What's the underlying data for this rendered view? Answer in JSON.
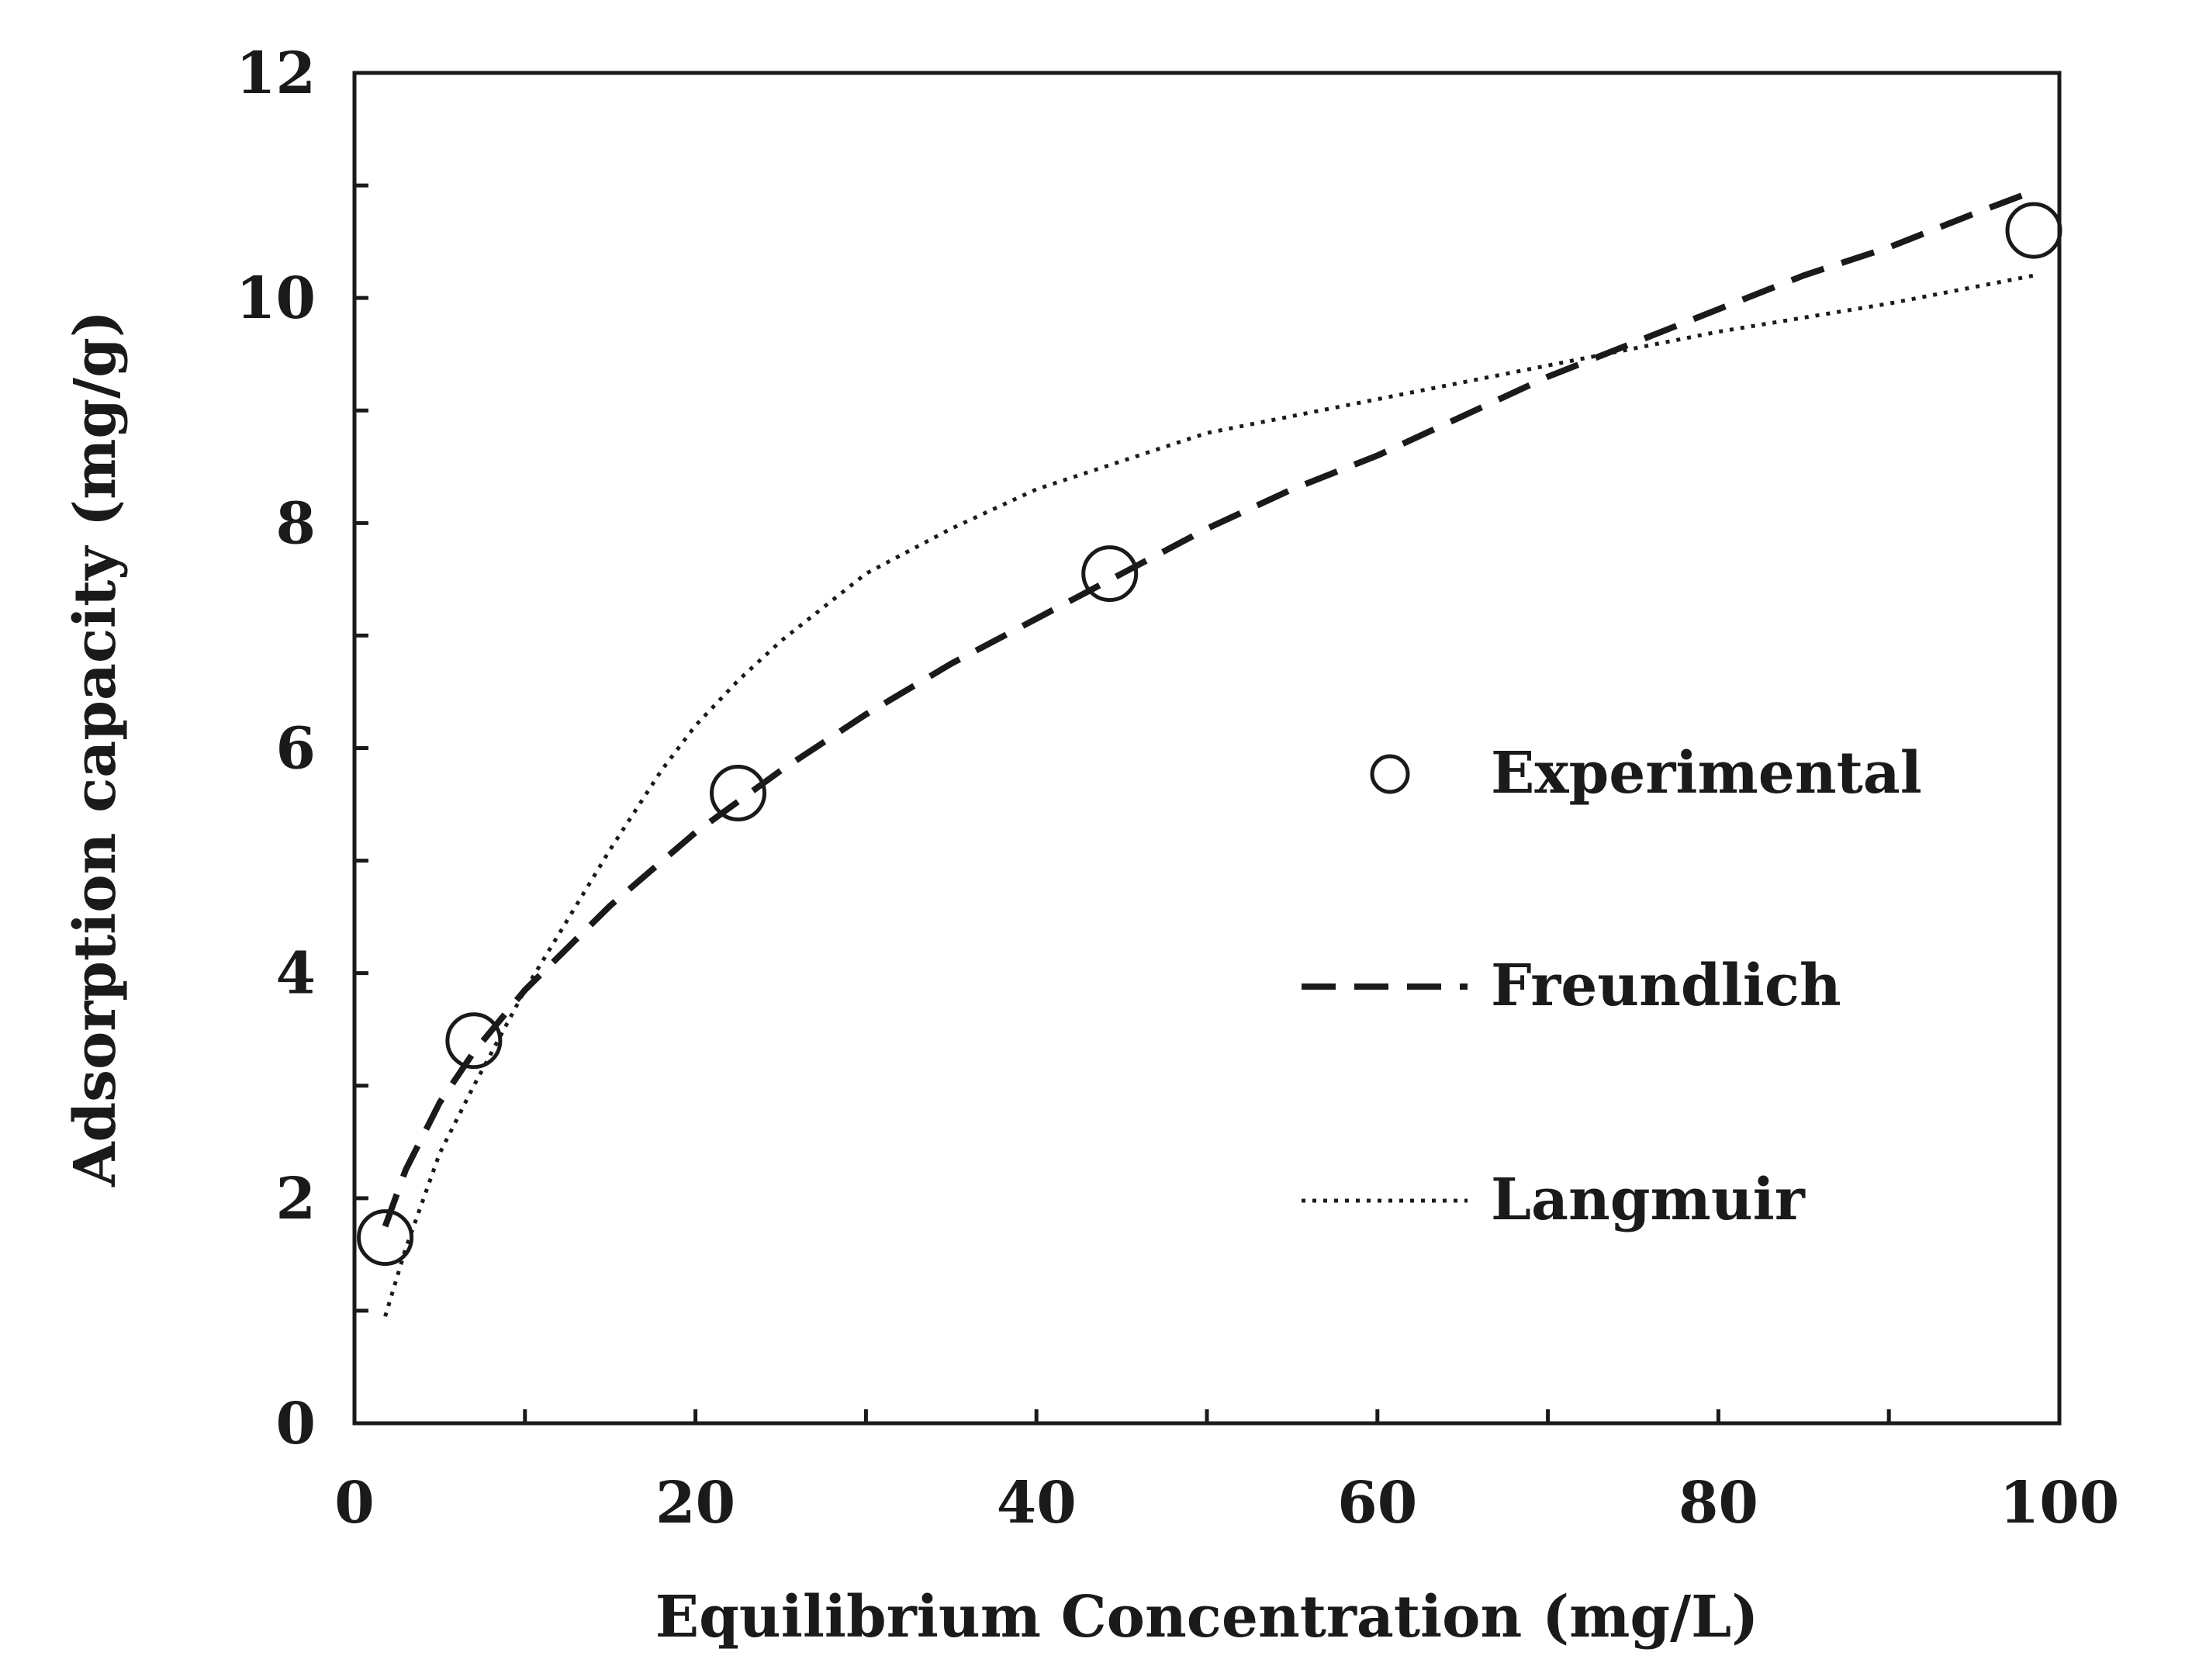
{
  "chart_data": {
    "type": "scatter",
    "title": "",
    "xlabel": "Equilibrium Concentration (mg/L)",
    "ylabel": "Adsorption capacity (mg/g)",
    "xlim": [
      0,
      100
    ],
    "ylim": [
      0,
      12
    ],
    "x_ticks": [
      0,
      20,
      40,
      60,
      80,
      100
    ],
    "x_tick_labels": [
      "0",
      "20",
      "40",
      "60",
      "80",
      "100"
    ],
    "x_minor_ticks": [
      10,
      30,
      50,
      70,
      90
    ],
    "y_ticks": [
      0,
      2,
      4,
      6,
      8,
      10,
      12
    ],
    "y_tick_labels": [
      "0",
      "2",
      "4",
      "6",
      "8",
      "10",
      "12"
    ],
    "y_minor_ticks": [
      1,
      3,
      5,
      7,
      9,
      11
    ],
    "grid": false,
    "legend_position": "center-right",
    "series": [
      {
        "name": "Experimental",
        "style": "open-circle",
        "x": [
          1.8,
          7.0,
          22.5,
          44.3,
          98.5
        ],
        "y": [
          1.65,
          3.4,
          5.6,
          7.55,
          10.6
        ]
      },
      {
        "name": "Freundlich",
        "style": "dashed",
        "x": [
          1.8,
          3,
          5,
          7,
          10,
          15,
          20,
          25,
          30,
          35,
          40,
          45,
          50,
          55,
          60,
          65,
          70,
          75,
          80,
          85,
          90,
          95,
          98.5
        ],
        "y": [
          1.75,
          2.25,
          2.85,
          3.3,
          3.85,
          4.6,
          5.25,
          5.8,
          6.3,
          6.75,
          7.15,
          7.55,
          7.95,
          8.3,
          8.6,
          8.95,
          9.3,
          9.6,
          9.9,
          10.2,
          10.45,
          10.75,
          10.95
        ]
      },
      {
        "name": "Langmuir",
        "style": "dotted",
        "x": [
          1.8,
          3,
          5,
          7,
          10,
          12,
          15,
          18,
          20,
          22.5,
          25,
          30,
          35,
          40,
          45,
          50,
          55,
          60,
          70,
          80,
          90,
          98.5
        ],
        "y": [
          0.95,
          1.55,
          2.4,
          3.0,
          3.85,
          4.35,
          5.1,
          5.8,
          6.2,
          6.6,
          6.95,
          7.55,
          7.95,
          8.3,
          8.55,
          8.8,
          8.95,
          9.1,
          9.4,
          9.7,
          9.95,
          10.2
        ]
      }
    ]
  }
}
